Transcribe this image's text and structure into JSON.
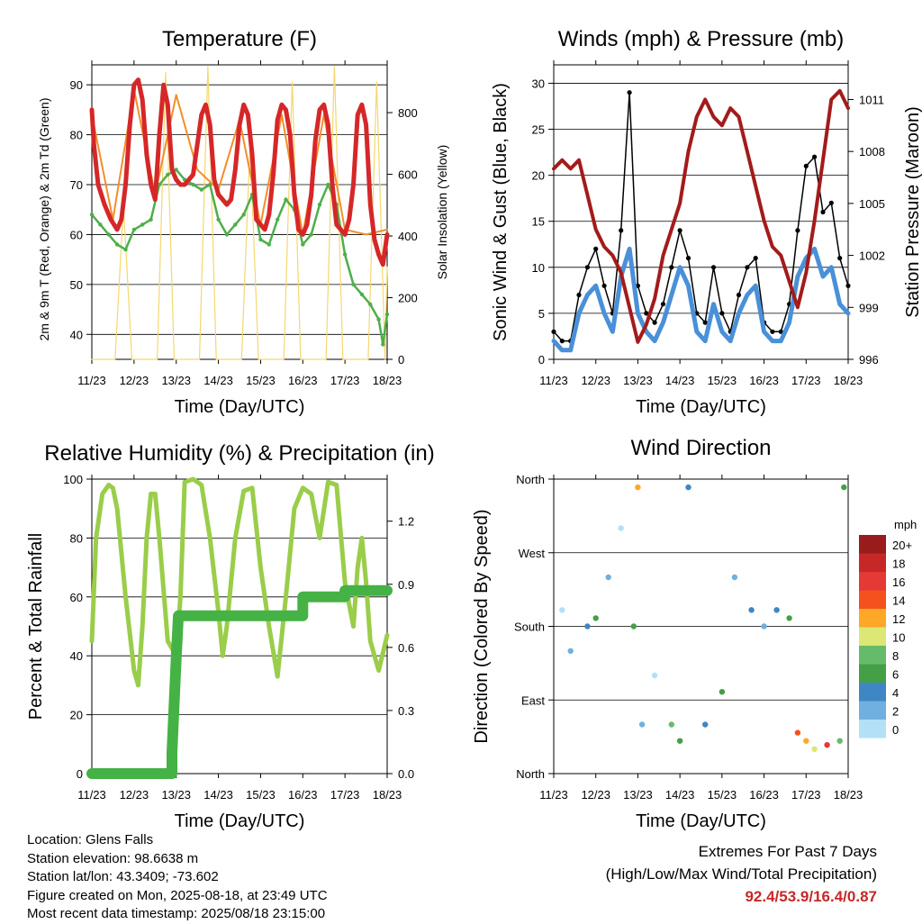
{
  "chart_data": [
    {
      "type": "line",
      "title": "Temperature (F)",
      "xlabel": "Time (Day/UTC)",
      "ylabel": "2m & 9m T (Red, Orange) & 2m Td (Green)",
      "ylabel_right": "Solar Insolation (Yellow)",
      "x_ticks": [
        "11/23",
        "12/23",
        "13/23",
        "14/23",
        "15/23",
        "16/23",
        "17/23",
        "18/23"
      ],
      "ylim": [
        35,
        94
      ],
      "y_ticks": [
        40,
        50,
        60,
        70,
        80,
        90
      ],
      "ylim_right": [
        0,
        955
      ],
      "y_ticks_right": [
        0,
        200,
        400,
        600,
        800
      ],
      "grid": true,
      "series": [
        {
          "name": "2m T",
          "color": "#d62728",
          "x": [
            0,
            0.05,
            0.15,
            0.3,
            0.45,
            0.6,
            0.7,
            0.8,
            0.9,
            1.0,
            1.1,
            1.2,
            1.3,
            1.4,
            1.5,
            1.6,
            1.7,
            1.8,
            1.9,
            2.0,
            2.1,
            2.2,
            2.3,
            2.4,
            2.5,
            2.6,
            2.7,
            2.8,
            2.9,
            3.0,
            3.1,
            3.2,
            3.3,
            3.4,
            3.5,
            3.6,
            3.7,
            3.8,
            3.9,
            4.0,
            4.1,
            4.2,
            4.3,
            4.4,
            4.5,
            4.6,
            4.7,
            4.8,
            4.9,
            5.0,
            5.1,
            5.2,
            5.3,
            5.4,
            5.5,
            5.6,
            5.7,
            5.8,
            5.9,
            6.0,
            6.1,
            6.2,
            6.3,
            6.4,
            6.5,
            6.6,
            6.7,
            6.8,
            6.9,
            7.0
          ],
          "y": [
            85,
            78,
            70,
            66,
            63,
            61,
            63,
            70,
            82,
            90,
            91,
            87,
            76,
            70,
            67,
            80,
            90,
            86,
            73,
            71,
            70,
            70,
            71,
            72,
            78,
            84,
            86,
            82,
            71,
            68,
            67,
            66,
            67,
            73,
            82,
            86,
            84,
            76,
            63,
            62,
            61,
            64,
            72,
            83,
            86,
            85,
            80,
            68,
            61,
            60,
            62,
            68,
            79,
            85,
            86,
            82,
            70,
            62,
            61,
            60,
            63,
            70,
            84,
            86,
            82,
            66,
            59,
            56,
            54,
            60
          ]
        },
        {
          "name": "9m T",
          "color": "#f28e2b",
          "x": [
            0,
            0.5,
            1.0,
            1.5,
            2.0,
            2.5,
            3.0,
            3.5,
            4.0,
            4.5,
            5.0,
            5.5,
            6.0,
            6.5,
            7.0
          ],
          "y": [
            84,
            63,
            89,
            68,
            88,
            73,
            69,
            83,
            62,
            84,
            60,
            84,
            61,
            60,
            61
          ]
        },
        {
          "name": "2m Td",
          "color": "#4daf4a",
          "x": [
            0,
            0.2,
            0.4,
            0.6,
            0.8,
            1.0,
            1.2,
            1.4,
            1.6,
            1.8,
            2.0,
            2.2,
            2.4,
            2.6,
            2.8,
            3.0,
            3.2,
            3.4,
            3.6,
            3.8,
            4.0,
            4.2,
            4.4,
            4.6,
            4.8,
            5.0,
            5.2,
            5.4,
            5.6,
            5.8,
            6.0,
            6.2,
            6.4,
            6.6,
            6.8,
            6.9,
            7.0
          ],
          "y": [
            64,
            62,
            60,
            58,
            57,
            61,
            62,
            63,
            70,
            72,
            73,
            71,
            70,
            69,
            70,
            63,
            60,
            62,
            64,
            68,
            59,
            58,
            63,
            67,
            65,
            58,
            60,
            66,
            70,
            66,
            56,
            50,
            48,
            46,
            43,
            38,
            44
          ]
        },
        {
          "name": "Solar",
          "color": "#f5d76e",
          "axis": "right",
          "x": [
            0,
            0.35,
            0.55,
            0.75,
            0.95,
            1.35,
            1.55,
            1.75,
            1.95,
            2.35,
            2.55,
            2.75,
            2.95,
            3.35,
            3.55,
            3.75,
            3.95,
            4.35,
            4.55,
            4.75,
            4.95,
            5.35,
            5.55,
            5.75,
            5.95,
            6.35,
            6.55,
            6.75,
            6.95,
            7.0
          ],
          "y": [
            0,
            0,
            0,
            500,
            0,
            0,
            0,
            930,
            0,
            0,
            0,
            950,
            0,
            0,
            0,
            700,
            0,
            0,
            0,
            900,
            0,
            0,
            0,
            950,
            0,
            0,
            0,
            900,
            0,
            300
          ]
        }
      ]
    },
    {
      "type": "line",
      "title": "Winds (mph) & Pressure (mb)",
      "xlabel": "Time (Day/UTC)",
      "ylabel": "Sonic Wind & Gust (Blue, Black)",
      "ylabel_right": "Station Pressure (Maroon)",
      "x_ticks": [
        "11/23",
        "12/23",
        "13/23",
        "14/23",
        "15/23",
        "16/23",
        "17/23",
        "18/23"
      ],
      "ylim": [
        0,
        32
      ],
      "y_ticks": [
        0,
        5,
        10,
        15,
        20,
        25,
        30
      ],
      "ylim_right": [
        996,
        1013
      ],
      "y_ticks_right": [
        996,
        999,
        1002,
        1005,
        1008,
        1011
      ],
      "grid": true,
      "series": [
        {
          "name": "Wind",
          "color": "#4a90d9",
          "x": [
            0,
            0.2,
            0.4,
            0.6,
            0.8,
            1.0,
            1.2,
            1.4,
            1.6,
            1.8,
            2.0,
            2.2,
            2.4,
            2.6,
            2.8,
            3.0,
            3.2,
            3.4,
            3.6,
            3.8,
            4.0,
            4.2,
            4.4,
            4.6,
            4.8,
            5.0,
            5.2,
            5.4,
            5.6,
            5.8,
            6.0,
            6.2,
            6.4,
            6.6,
            6.8,
            7.0
          ],
          "y": [
            2,
            1,
            1,
            5,
            7,
            8,
            5,
            3,
            9,
            12,
            5,
            3,
            2,
            4,
            7,
            10,
            8,
            3,
            2,
            6,
            3,
            2,
            5,
            7,
            8,
            3,
            2,
            2,
            4,
            9,
            11,
            12,
            9,
            10,
            6,
            5
          ]
        },
        {
          "name": "Gust",
          "color": "#000000",
          "x": [
            0,
            0.2,
            0.4,
            0.6,
            0.8,
            1.0,
            1.2,
            1.4,
            1.6,
            1.8,
            2.0,
            2.2,
            2.4,
            2.6,
            2.8,
            3.0,
            3.2,
            3.4,
            3.6,
            3.8,
            4.0,
            4.2,
            4.4,
            4.6,
            4.8,
            5.0,
            5.2,
            5.4,
            5.6,
            5.8,
            6.0,
            6.2,
            6.4,
            6.6,
            6.8,
            7.0
          ],
          "y": [
            3,
            2,
            2,
            7,
            10,
            12,
            8,
            5,
            14,
            29,
            8,
            5,
            4,
            6,
            10,
            14,
            11,
            5,
            4,
            10,
            5,
            3,
            7,
            10,
            11,
            4,
            3,
            3,
            6,
            14,
            21,
            22,
            16,
            17,
            11,
            8
          ]
        },
        {
          "name": "Pressure",
          "color": "#a31b1b",
          "axis": "right",
          "x": [
            0,
            0.2,
            0.4,
            0.6,
            0.8,
            1.0,
            1.2,
            1.4,
            1.6,
            1.8,
            2.0,
            2.2,
            2.4,
            2.6,
            2.8,
            3.0,
            3.2,
            3.4,
            3.6,
            3.8,
            4.0,
            4.2,
            4.4,
            4.6,
            4.8,
            5.0,
            5.2,
            5.4,
            5.6,
            5.8,
            6.0,
            6.2,
            6.4,
            6.6,
            6.8,
            7.0
          ],
          "y": [
            1007,
            1007.5,
            1007,
            1007.5,
            1005.5,
            1003.5,
            1002.5,
            1002,
            1001,
            999,
            997,
            998,
            999.5,
            1002,
            1003.5,
            1005,
            1008,
            1010,
            1011,
            1010,
            1009.5,
            1010.5,
            1010,
            1008,
            1006,
            1004,
            1002.5,
            1002,
            1000.5,
            999,
            1001,
            1004,
            1007.5,
            1011,
            1011.5,
            1010.5
          ]
        }
      ]
    },
    {
      "type": "line",
      "title": "Relative Humidity (%) & Precipitation (in)",
      "xlabel": "Time (Day/UTC)",
      "ylabel": "Percent & Total Rainfall",
      "x_ticks": [
        "11/23",
        "12/23",
        "13/23",
        "14/23",
        "15/23",
        "16/23",
        "17/23",
        "18/23"
      ],
      "ylim": [
        0,
        100
      ],
      "y_ticks": [
        0,
        20,
        40,
        60,
        80,
        100
      ],
      "ylim_right": [
        0,
        1.4
      ],
      "y_ticks_right": [
        "0.0",
        "0.3",
        "0.6",
        "0.9",
        "1.2"
      ],
      "grid": true,
      "series": [
        {
          "name": "RH",
          "color": "#9acd4a",
          "x": [
            0,
            0.1,
            0.25,
            0.4,
            0.5,
            0.6,
            0.8,
            1.0,
            1.1,
            1.2,
            1.3,
            1.4,
            1.5,
            1.6,
            1.8,
            2.0,
            2.1,
            2.2,
            2.4,
            2.6,
            2.8,
            3.0,
            3.1,
            3.2,
            3.4,
            3.6,
            3.8,
            4.0,
            4.2,
            4.4,
            4.6,
            4.8,
            5.0,
            5.2,
            5.4,
            5.6,
            5.8,
            6.0,
            6.2,
            6.3,
            6.4,
            6.5,
            6.6,
            6.8,
            7.0
          ],
          "y": [
            45,
            80,
            95,
            98,
            97,
            90,
            60,
            35,
            30,
            50,
            80,
            95,
            95,
            80,
            45,
            40,
            60,
            99,
            100,
            98,
            80,
            55,
            40,
            50,
            80,
            96,
            97,
            70,
            50,
            33,
            60,
            90,
            97,
            95,
            80,
            99,
            98,
            65,
            50,
            70,
            80,
            65,
            45,
            35,
            47
          ]
        },
        {
          "name": "Precip",
          "color": "#44b244",
          "axis": "right",
          "x": [
            0,
            1.9,
            1.9,
            2.0,
            2.05,
            3.0,
            4.0,
            5.0,
            5.0,
            6.0,
            6.0,
            7.0
          ],
          "y": [
            0,
            0,
            0.1,
            0.55,
            0.75,
            0.75,
            0.75,
            0.75,
            0.84,
            0.84,
            0.87,
            0.87
          ]
        }
      ]
    },
    {
      "type": "scatter",
      "title": "Wind Direction",
      "xlabel": "Time (Day/UTC)",
      "ylabel": "Direction (Colored By Speed)",
      "x_ticks": [
        "11/23",
        "12/23",
        "13/23",
        "14/23",
        "15/23",
        "16/23",
        "17/23",
        "18/23"
      ],
      "y_ticks": [
        "North",
        "East",
        "South",
        "West",
        "North"
      ],
      "ylim": [
        0,
        360
      ],
      "grid": true,
      "colorbar": {
        "unit": "mph",
        "labels": [
          "20+",
          "18",
          "16",
          "14",
          "12",
          "10",
          "8",
          "6",
          "4",
          "2",
          "0"
        ],
        "colors": [
          "#991b1b",
          "#c62828",
          "#e53935",
          "#f4511e",
          "#ffa726",
          "#dce775",
          "#66bb6a",
          "#43a047",
          "#3f86c4",
          "#6fb0e0",
          "#b3e0f7"
        ]
      },
      "points": [
        {
          "x": 0.2,
          "dir": 200,
          "spd": 1
        },
        {
          "x": 0.4,
          "dir": 150,
          "spd": 2
        },
        {
          "x": 0.8,
          "dir": 180,
          "spd": 5
        },
        {
          "x": 1.0,
          "dir": 190,
          "spd": 6
        },
        {
          "x": 1.3,
          "dir": 240,
          "spd": 2
        },
        {
          "x": 1.6,
          "dir": 300,
          "spd": 1
        },
        {
          "x": 1.9,
          "dir": 180,
          "spd": 7
        },
        {
          "x": 2.0,
          "dir": 350,
          "spd": 12
        },
        {
          "x": 2.1,
          "dir": 60,
          "spd": 2
        },
        {
          "x": 2.4,
          "dir": 120,
          "spd": 1
        },
        {
          "x": 2.8,
          "dir": 60,
          "spd": 8
        },
        {
          "x": 3.0,
          "dir": 40,
          "spd": 6
        },
        {
          "x": 3.2,
          "dir": 350,
          "spd": 5
        },
        {
          "x": 3.6,
          "dir": 60,
          "spd": 4
        },
        {
          "x": 4.0,
          "dir": 100,
          "spd": 6
        },
        {
          "x": 4.3,
          "dir": 240,
          "spd": 2
        },
        {
          "x": 4.7,
          "dir": 200,
          "spd": 4
        },
        {
          "x": 5.0,
          "dir": 180,
          "spd": 3
        },
        {
          "x": 5.3,
          "dir": 200,
          "spd": 5
        },
        {
          "x": 5.6,
          "dir": 190,
          "spd": 7
        },
        {
          "x": 5.8,
          "dir": 50,
          "spd": 14
        },
        {
          "x": 6.0,
          "dir": 40,
          "spd": 12
        },
        {
          "x": 6.2,
          "dir": 30,
          "spd": 10
        },
        {
          "x": 6.5,
          "dir": 35,
          "spd": 16
        },
        {
          "x": 6.8,
          "dir": 40,
          "spd": 9
        },
        {
          "x": 6.9,
          "dir": 350,
          "spd": 6
        }
      ]
    }
  ],
  "footer": {
    "location": "Location: Glens Falls",
    "elevation": "Station elevation: 98.6638 m",
    "latlon": "Station lat/lon: 43.3409; -73.602",
    "created": "Figure created on Mon, 2025-08-18, at 23:49 UTC",
    "recent": "Most recent data timestamp: 2025/08/18 23:15:00"
  },
  "extremes": {
    "line1": "Extremes For Past 7 Days",
    "line2": "(High/Low/Max Wind/Total Precipitation)",
    "values": "92.4/53.9/16.4/0.87"
  }
}
